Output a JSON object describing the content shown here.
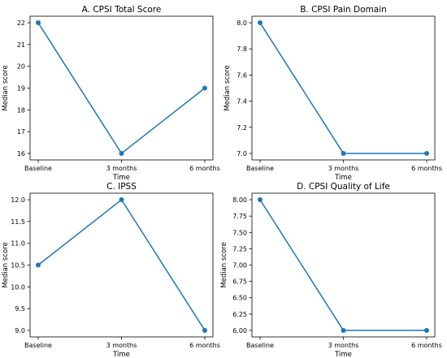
{
  "chart_data": [
    {
      "type": "line",
      "title": "A. CPSI Total Score",
      "xlabel": "Time",
      "ylabel": "Median score",
      "categories": [
        "Baseline",
        "3 months",
        "6 months"
      ],
      "values": [
        22,
        16,
        19
      ],
      "ylim": [
        15.7,
        22.3
      ],
      "yticks": [
        "16",
        "17",
        "18",
        "19",
        "20",
        "21",
        "22"
      ],
      "grid": false,
      "color": "#1f77b4"
    },
    {
      "type": "line",
      "title": "B. CPSI Pain Domain",
      "xlabel": "Time",
      "ylabel": "Median score",
      "categories": [
        "Baseline",
        "3 months",
        "6 months"
      ],
      "values": [
        8.0,
        7.0,
        7.0
      ],
      "ylim": [
        6.95,
        8.05
      ],
      "yticks": [
        "7.0",
        "7.2",
        "7.4",
        "7.6",
        "7.8",
        "8.0"
      ],
      "grid": false,
      "color": "#1f77b4"
    },
    {
      "type": "line",
      "title": "C. IPSS",
      "xlabel": "Time",
      "ylabel": "Median score",
      "categories": [
        "Baseline",
        "3 months",
        "6 months"
      ],
      "values": [
        10.5,
        12.0,
        9.0
      ],
      "ylim": [
        8.85,
        12.15
      ],
      "yticks": [
        "9.0",
        "9.5",
        "10.0",
        "10.5",
        "11.0",
        "11.5",
        "12.0"
      ],
      "grid": false,
      "color": "#1f77b4"
    },
    {
      "type": "line",
      "title": "D. CPSI Quality of Life",
      "xlabel": "Time",
      "ylabel": "Median score",
      "categories": [
        "Baseline",
        "3 months",
        "6 months"
      ],
      "values": [
        8.0,
        6.0,
        6.0
      ],
      "ylim": [
        5.9,
        8.1
      ],
      "yticks": [
        "6.00",
        "6.25",
        "6.50",
        "6.75",
        "7.00",
        "7.25",
        "7.50",
        "7.75",
        "8.00"
      ],
      "grid": false,
      "color": "#1f77b4"
    }
  ]
}
